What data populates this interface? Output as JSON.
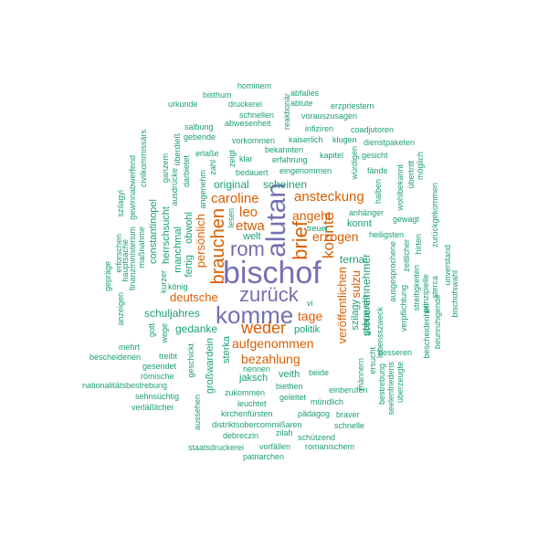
{
  "palette": {
    "purple": "#7570b3",
    "orange": "#d95f02",
    "green": "#1b9e77",
    "background": "#ffffff"
  },
  "words": {
    "bischof": "bischof",
    "alutan": "alutan",
    "komme": "komme",
    "zurueck": "zurück",
    "rom": "rom",
    "brief": "brief",
    "brauchen": "brauchen",
    "weder": "weder",
    "konnte": "konnte",
    "erzogen": "erzogen",
    "angeht": "angeht",
    "ansteckung": "ansteckung",
    "caroline": "caroline",
    "leo": "leo",
    "etwa": "etwa",
    "aufgenommen": "aufgenommen",
    "bezahlung": "bezahlung",
    "deutsche": "deutsche",
    "tage": "tage",
    "persoenlich": "persönlich",
    "veroeffentlichen": "veröffentlichen",
    "sulzu": "sulzu",
    "steuereinnehmer": "steuereinnehmer",
    "szilagy": "szilagy",
    "terna": "terna",
    "hominem": "hominem",
    "bisthum": "bisthum",
    "urkunde": "urkunde",
    "druckerei": "druckerei",
    "abfalles": "abfalles",
    "ablute": "ablute",
    "erzpriestern": "erzpriestern",
    "schnellen": "schnellen",
    "vorauszusagen": "vorauszusagen",
    "salbung": "salbung",
    "abwesenheit": "abwesenheit",
    "gebende": "gebende",
    "coadjutoren": "coadjutoren",
    "infiziren": "infiziren",
    "kaiserlich": "kaiserlich",
    "klugen": "klugen",
    "dienstpaketen": "dienstpaketen",
    "vorkommen": "vorkommen",
    "bekannten": "bekannten",
    "erlasse": "erlaße",
    "klar": "klar",
    "erfahrung": "erfahrung",
    "kapitel": "kapitel",
    "gesicht": "gesicht",
    "bedauert": "bedauert",
    "eingenommen": "eingenommen",
    "faende": "fände",
    "original": "original",
    "scheinen": "scheinen",
    "konnt": "konnt",
    "anhaenger": "anhänger",
    "gewagt": "gewagt",
    "welt": "welt",
    "heiligsten": "heiligsten",
    "treuer": "treuer",
    "koenig": "könig",
    "vi": "vi",
    "schuljahres": "schuljahres",
    "gedanke": "gedanke",
    "politik": "politik",
    "mehrt": "mehrt",
    "bescheidenen": "bescheidenen",
    "treibt": "treibt",
    "gesendet": "gesendet",
    "roemische": "römische",
    "nationalitaetsbestrebung": "nationalitätsbestrebung",
    "sehnsuechtig": "sehnsüchtig",
    "verlaesslicher": "verläßlicher",
    "jaksch": "jaksch",
    "veith": "veith",
    "beide": "beide",
    "nennen": "nennen",
    "zukommen": "zukommen",
    "biethen": "biethen",
    "leuchtet": "leuchtet",
    "geleitet": "geleitet",
    "muendlich": "mündlich",
    "einberufen": "einberufen",
    "kirchenfuersten": "kirchenfürsten",
    "braver": "braver",
    "paedagog": "pädagog",
    "distriktsobercommissaeren": "distriktsobercommißaren",
    "schnelle": "schnelle",
    "debreczin": "debreczin",
    "zilah": "zilah",
    "schuetzend": "schützend",
    "staatsdruckerei": "staatsdruckerei",
    "vorfaellen": "vorfällen",
    "romanischem": "romanischem",
    "patriarchen": "patriarchen",
    "besseren": "besseren",
    "ersucht": "ersucht",
    "maennern": "männern",
    "seelenfriedens": "seelenfriedens",
    "bestrebung": "bestrebung",
    "ueberzeugte": "überzeugte",
    "grosswardein": "großwardein",
    "sterka": "sterka",
    "aussehen": "aussehen",
    "geschickt": "geschickt",
    "gott": "gott",
    "wege": "wege",
    "kurzer": "kurzer",
    "fertig": "fertig",
    "obwohl": "obwohl",
    "manchmal": "manchmal",
    "herrschsucht": "herrschsucht",
    "constantinopel": "constantinopel",
    "ganzem": "ganzem",
    "ausdruecke": "ausdrücke",
    "angenehm": "angenehm",
    "darbietet": "darbietet",
    "ueberdiess": "überdieß",
    "zahl": "zahl",
    "zeigt": "zeigt",
    "lesen": "lesen",
    "reaktionaer": "reaktionär",
    "wuerdigen": "würdigen",
    "halben": "halben",
    "wohlbekannt": "wohlbekannt",
    "uebertritt": "übertritt",
    "moeglich": "möglich",
    "zurueckgekommen": "zurückgekommen",
    "hirten": "hirten",
    "zeitlicher": "zeitlicher",
    "ausgesprochene": "ausgesprochene",
    "streitigkeiten": "streitigkeiten",
    "prinzipielle": "prinzipielle",
    "sterca": "sterca",
    "unverstand": "unverstand",
    "bischofswahl": "bischofswahl",
    "beunruhigende": "beunruhigende",
    "bescheidenheit": "bescheidenheit",
    "verpflichtung": "verpflichtung",
    "lebensszweck": "lebensszweck",
    "gebraucht": "gebraucht",
    "civilkommissaers": "civilkommissärs",
    "gewinnabwerfend": "gewinnabwerfend",
    "szilagyi": "szilagyi",
    "massnahme": "maßnahme",
    "erforschen": "erforschen",
    "hauptsache": "hauptsache",
    "finanzministerium": "finanzministerium",
    "gepraege": "gepräge",
    "anzeigen": "anzeigen",
    "kurzer2": "kurzer"
  }
}
